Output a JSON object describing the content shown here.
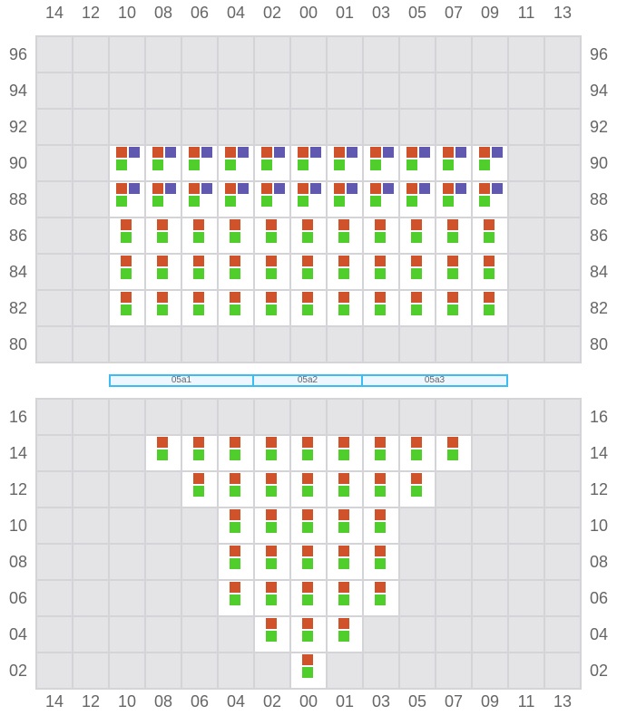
{
  "columns": [
    "14",
    "12",
    "10",
    "08",
    "06",
    "04",
    "02",
    "00",
    "01",
    "03",
    "05",
    "07",
    "09",
    "11",
    "13"
  ],
  "colors": {
    "red": "#d0522b",
    "purple": "#6159b0",
    "green": "#4fce2c",
    "empty": "#e4e4e7",
    "active": "#ffffff",
    "zone_border": "#3bbcf5"
  },
  "top_section": {
    "rows": [
      {
        "label": "96",
        "active": []
      },
      {
        "label": "94",
        "active": []
      },
      {
        "label": "92",
        "active": []
      },
      {
        "label": "90",
        "active": [
          "10",
          "09"
        ],
        "devices": [
          "red",
          "purple",
          "green"
        ]
      },
      {
        "label": "88",
        "active": [
          "10",
          "09"
        ],
        "devices": [
          "red",
          "purple",
          "green"
        ]
      },
      {
        "label": "86",
        "active": [
          "10",
          "09"
        ],
        "devices": [
          "red",
          "green"
        ]
      },
      {
        "label": "84",
        "active": [
          "10",
          "09"
        ],
        "devices": [
          "red",
          "green"
        ]
      },
      {
        "label": "82",
        "active": [
          "10",
          "09"
        ],
        "devices": [
          "red",
          "green"
        ]
      },
      {
        "label": "80",
        "active": []
      }
    ]
  },
  "zones": [
    {
      "label": "05a1",
      "from": "10",
      "to": "04"
    },
    {
      "label": "05a2",
      "from": "02",
      "to": "01"
    },
    {
      "label": "05a3",
      "from": "03",
      "to": "09"
    }
  ],
  "bottom_section": {
    "rows": [
      {
        "label": "16",
        "active": []
      },
      {
        "label": "14",
        "active": [
          "08",
          "07"
        ],
        "devices": [
          "red",
          "green"
        ]
      },
      {
        "label": "12",
        "active": [
          "06",
          "05"
        ],
        "devices": [
          "red",
          "green"
        ]
      },
      {
        "label": "10",
        "active": [
          "04",
          "03"
        ],
        "devices": [
          "red",
          "green"
        ]
      },
      {
        "label": "08",
        "active": [
          "04",
          "03"
        ],
        "devices": [
          "red",
          "green"
        ]
      },
      {
        "label": "06",
        "active": [
          "04",
          "03"
        ],
        "devices": [
          "red",
          "green"
        ]
      },
      {
        "label": "04",
        "active": [
          "02",
          "01"
        ],
        "devices": [
          "red",
          "green"
        ]
      },
      {
        "label": "02",
        "active": [
          "00",
          "00"
        ],
        "devices": [
          "red",
          "green"
        ]
      }
    ]
  }
}
